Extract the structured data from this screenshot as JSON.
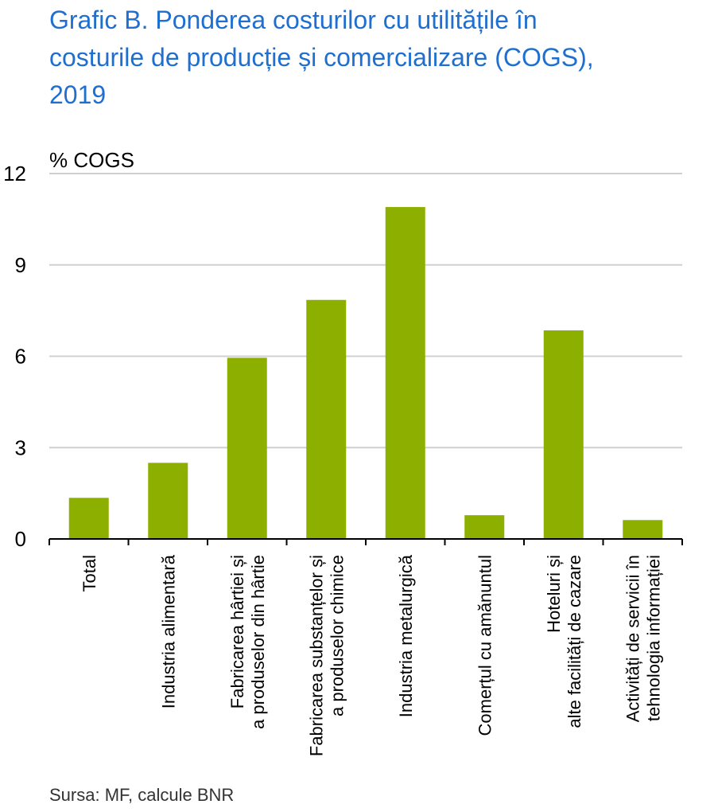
{
  "title_lines": [
    "Grafic B. Ponderea costurilor  cu utilitățile  în",
    "costurile de producție  și comercializare  (COGS),",
    "2019"
  ],
  "source": "Sursa: MF, calcule BNR",
  "colors": {
    "title": "#1f6fd0",
    "bar": "#8db000",
    "grid": "#d0d0d0",
    "axis": "#000000",
    "text": "#000000"
  },
  "chart_data": {
    "type": "bar",
    "ylabel": "% COGS",
    "ylim": [
      0,
      12
    ],
    "yticks": [
      0,
      3,
      6,
      9,
      12
    ],
    "grid": true,
    "categories": [
      [
        "Total"
      ],
      [
        "Industria alimentară"
      ],
      [
        "Fabricarea hârtiei și",
        "a produselor din hârtie"
      ],
      [
        "Fabricarea substanțelor și",
        "a produselor chimice"
      ],
      [
        "Industria metalurgică"
      ],
      [
        "Comerțul cu amănuntul"
      ],
      [
        "Hoteluri și",
        "alte facilități de cazare"
      ],
      [
        "Activități de servicii în",
        "tehnologia informației"
      ]
    ],
    "values": [
      1.35,
      2.5,
      5.95,
      7.85,
      10.9,
      0.78,
      6.85,
      0.62
    ]
  }
}
